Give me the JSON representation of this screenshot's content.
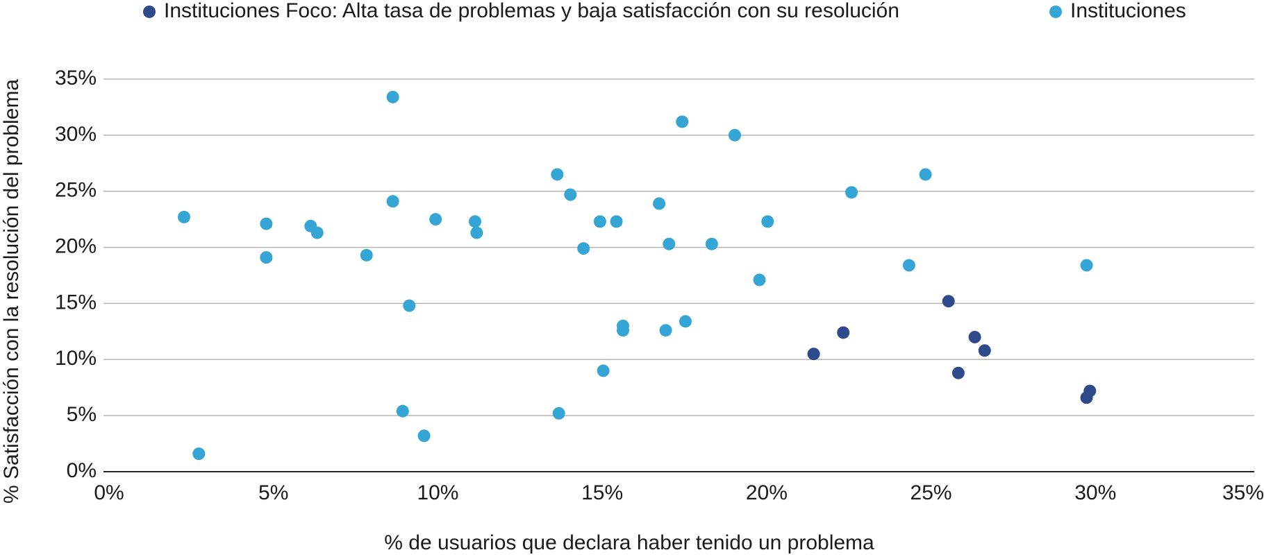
{
  "chart_data": {
    "type": "scatter",
    "x_label": "% de usuarios que declara haber tenido un problema",
    "y_label": "% Satisfacción con la resolución del problema",
    "xlim": [
      0,
      35
    ],
    "ylim": [
      0,
      35
    ],
    "xticks": [
      {
        "value": 0,
        "label": "0%"
      },
      {
        "value": 5,
        "label": "5%"
      },
      {
        "value": 10,
        "label": "10%"
      },
      {
        "value": 15,
        "label": "15%"
      },
      {
        "value": 20,
        "label": "20%"
      },
      {
        "value": 25,
        "label": "25%"
      },
      {
        "value": 30,
        "label": "30%"
      },
      {
        "value": 35,
        "label": "35%"
      }
    ],
    "yticks": [
      {
        "value": 0,
        "label": "0%"
      },
      {
        "value": 5,
        "label": "5%"
      },
      {
        "value": 10,
        "label": "10%"
      },
      {
        "value": 15,
        "label": "15%"
      },
      {
        "value": 20,
        "label": "20%"
      },
      {
        "value": 25,
        "label": "25%"
      },
      {
        "value": 30,
        "label": "30%"
      },
      {
        "value": 35,
        "label": "35%"
      }
    ],
    "grid": true,
    "legend": "top",
    "series": [
      {
        "name": "Instituciones Foco: Alta tasa de problemas y baja satisfacción con su resolución",
        "color": "#2e4a8a",
        "x": [
          21.6,
          22.5,
          25.7,
          26.0,
          26.5,
          26.8,
          29.9,
          30.0
        ],
        "values": [
          10.5,
          12.4,
          15.2,
          8.8,
          12.0,
          10.8,
          6.6,
          7.2
        ]
      },
      {
        "name": "Instituciones",
        "color": "#35a5d5",
        "x": [
          2.45,
          2.9,
          4.95,
          4.95,
          6.3,
          6.5,
          8.0,
          8.8,
          8.8,
          9.3,
          9.1,
          9.75,
          10.1,
          11.3,
          11.35,
          13.8,
          13.85,
          14.2,
          14.6,
          15.1,
          15.2,
          15.6,
          15.8,
          15.8,
          16.9,
          17.1,
          17.2,
          17.6,
          17.7,
          18.5,
          19.2,
          19.95,
          20.2,
          22.75,
          24.5,
          25.0,
          29.9
        ],
        "values": [
          22.7,
          1.6,
          22.1,
          19.1,
          21.9,
          21.3,
          19.3,
          33.4,
          24.1,
          14.8,
          5.4,
          3.2,
          22.5,
          22.3,
          21.3,
          26.5,
          5.2,
          24.7,
          19.9,
          22.3,
          9.0,
          22.3,
          13.0,
          12.6,
          23.9,
          12.6,
          20.3,
          31.2,
          13.4,
          20.3,
          30.0,
          17.1,
          22.3,
          24.9,
          18.4,
          26.5,
          18.4
        ]
      }
    ]
  }
}
